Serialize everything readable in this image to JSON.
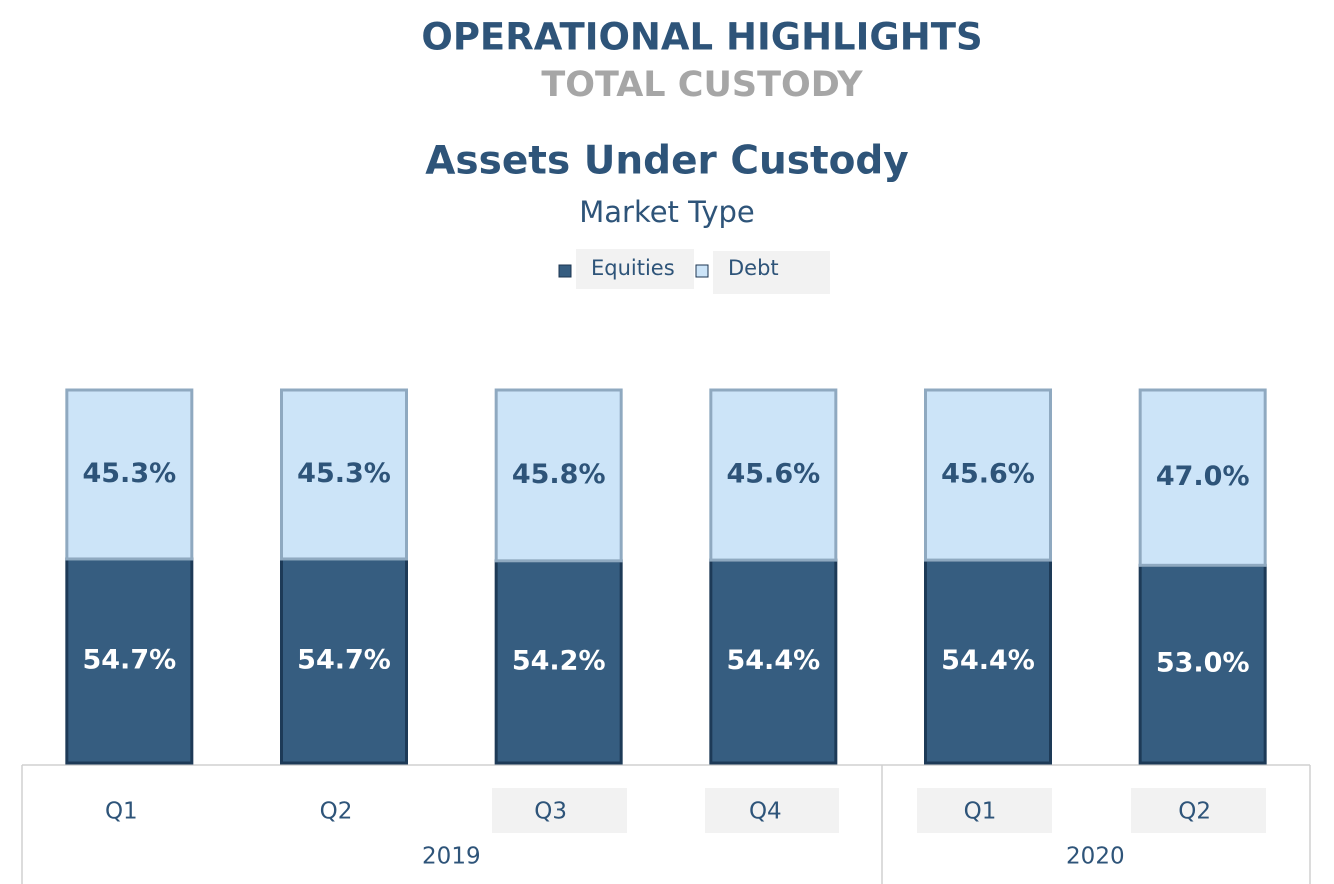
{
  "title": "OPERATIONAL HIGHLIGHTS",
  "subtitle": "TOTAL CUSTODY",
  "chart_data": {
    "type": "stacked_bar",
    "title": "Assets Under Custody",
    "subtitle": "Market Type",
    "category_groups": [
      {
        "name": "2019",
        "categories": [
          "Q1",
          "Q2",
          "Q3",
          "Q4"
        ]
      },
      {
        "name": "2020",
        "categories": [
          "Q1",
          "Q2"
        ]
      }
    ],
    "series": [
      {
        "name": "Equities",
        "color": "#365d80",
        "label_color": "#ffffff",
        "values": [
          54.7,
          54.7,
          54.2,
          54.4,
          54.4,
          53.0
        ],
        "value_labels": [
          "54.7%",
          "54.7%",
          "54.2%",
          "54.4%",
          "54.4%",
          "53.0%"
        ]
      },
      {
        "name": "Debt",
        "color": "#cce4f8",
        "label_color": "#2e5479",
        "values": [
          45.3,
          45.3,
          45.8,
          45.6,
          45.6,
          47.0
        ],
        "value_labels": [
          "45.3%",
          "45.3%",
          "45.8%",
          "45.6%",
          "45.6%",
          "47.0%"
        ]
      }
    ]
  }
}
